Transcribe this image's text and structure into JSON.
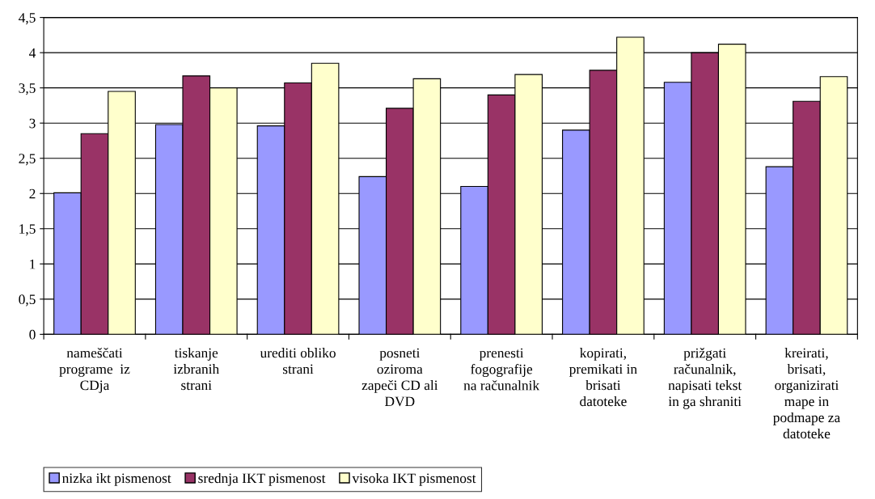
{
  "chart_data": {
    "type": "bar",
    "categories": [
      "nameščati\nprograme  iz\nCDja",
      "tiskanje\nizbranih\nstrani",
      "urediti obliko\nstrani",
      "posneti\noziroma\nzapeči CD ali\nDVD",
      "prenesti\nfogografije\nna računalnik",
      "kopirati,\npremikati in\nbrisati\ndatoteke",
      "prižgati\nračunalnik,\nnapisati tekst\nin ga shraniti",
      "kreirati,\nbrisati,\norganizirati\nmape in\npodmape za\ndatoteke"
    ],
    "series": [
      {
        "name": "nizka ikt pismenost",
        "color": "#9999ff",
        "values": [
          2.01,
          2.98,
          2.96,
          2.24,
          2.1,
          2.9,
          3.58,
          2.38
        ]
      },
      {
        "name": "srednja IKT pismenost",
        "color": "#993366",
        "values": [
          2.85,
          3.67,
          3.57,
          3.21,
          3.4,
          3.75,
          4.0,
          3.31
        ]
      },
      {
        "name": "visoka IKT pismenost",
        "color": "#ffffcc",
        "values": [
          3.45,
          3.5,
          3.85,
          3.63,
          3.69,
          4.22,
          4.12,
          3.66
        ]
      }
    ],
    "ylim": [
      0,
      4.5
    ],
    "yticks": [
      0,
      {
        "value": 0.5,
        "label": "0,5"
      },
      1,
      {
        "value": 1.5,
        "label": "1,5"
      },
      2,
      {
        "value": 2.5,
        "label": "2,5"
      },
      3,
      {
        "value": 3.5,
        "label": "3,5"
      },
      4,
      {
        "value": 4.5,
        "label": "4,5"
      }
    ],
    "grid": "y",
    "legend": "bottom left"
  }
}
